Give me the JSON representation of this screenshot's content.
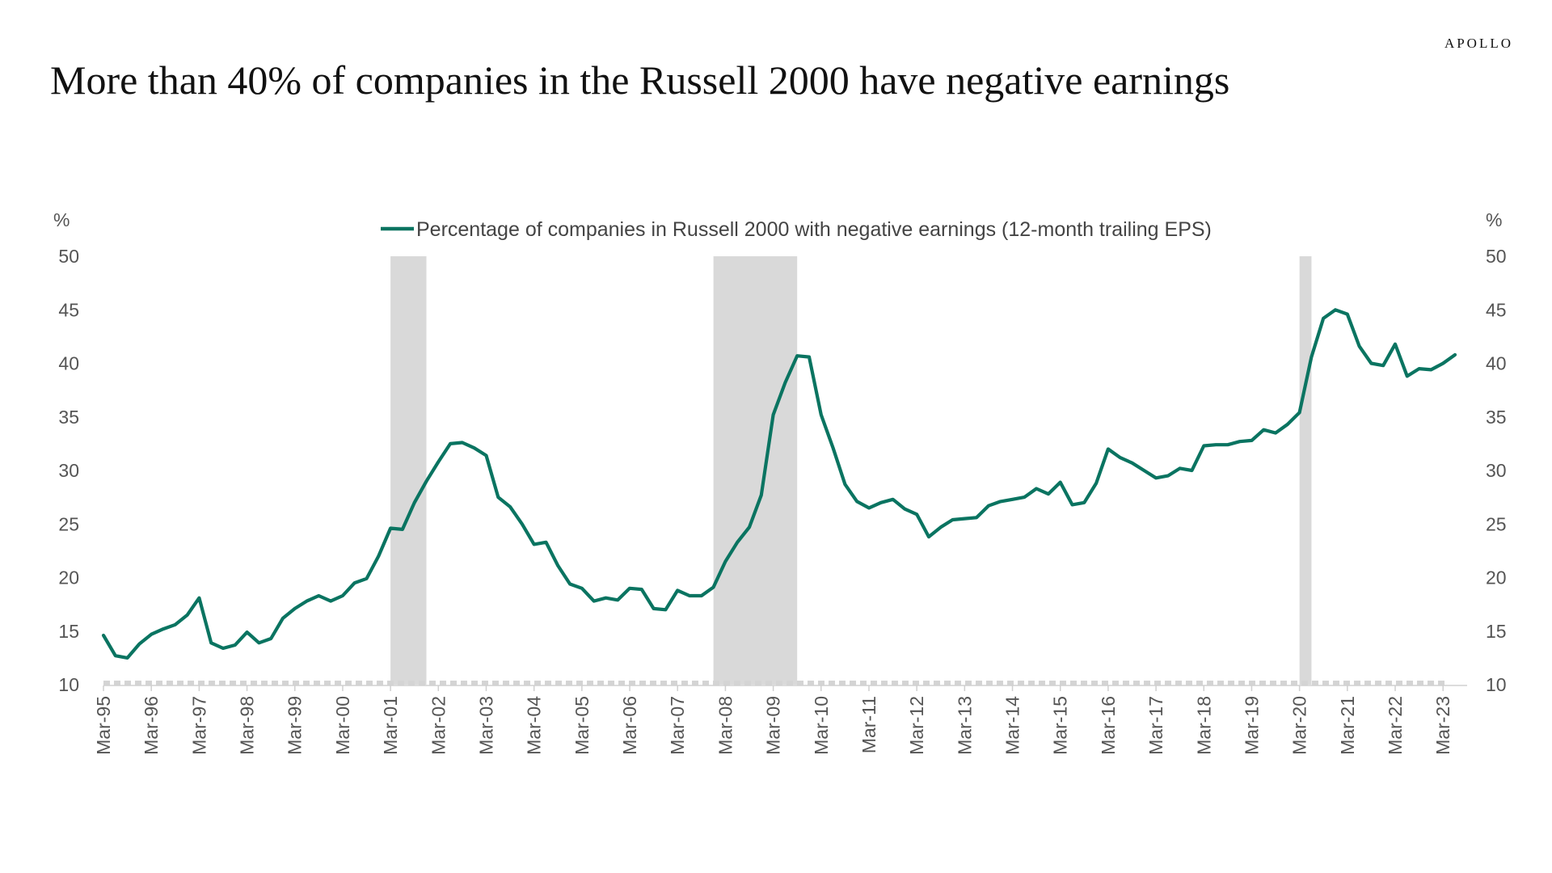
{
  "brand": "APOLLO",
  "title": "More than 40% of companies in the Russell 2000 have negative earnings",
  "chart_data": {
    "type": "line",
    "title": "More than 40% of companies in the Russell 2000 have negative earnings",
    "ylabel_left": "%",
    "ylabel_right": "%",
    "ylim": [
      10,
      50
    ],
    "yticks": [
      10,
      15,
      20,
      25,
      30,
      35,
      40,
      45,
      50
    ],
    "x_tick_labels": [
      "Mar-95",
      "Mar-96",
      "Mar-97",
      "Mar-98",
      "Mar-99",
      "Mar-00",
      "Mar-01",
      "Mar-02",
      "Mar-03",
      "Mar-04",
      "Mar-05",
      "Mar-06",
      "Mar-07",
      "Mar-08",
      "Mar-09",
      "Mar-10",
      "Mar-11",
      "Mar-12",
      "Mar-13",
      "Mar-14",
      "Mar-15",
      "Mar-16",
      "Mar-17",
      "Mar-18",
      "Mar-19",
      "Mar-20",
      "Mar-21",
      "Mar-22",
      "Mar-23"
    ],
    "legend_position": "top-center",
    "grid": false,
    "recession_shading": [
      {
        "start": 2001.0,
        "end": 2001.75
      },
      {
        "start": 2007.75,
        "end": 2009.5
      },
      {
        "start": 2020.0,
        "end": 2020.25
      }
    ],
    "colors": {
      "line": "#0a7461",
      "recession": "#d9d9d9",
      "zero_dash": "#d4d4d4"
    },
    "series": [
      {
        "name": "Percentage of companies in Russell 2000 with negative earnings (12-month trailing EPS)",
        "x": [
          1995.0,
          1995.25,
          1995.5,
          1995.75,
          1996.0,
          1996.25,
          1996.5,
          1996.75,
          1997.0,
          1997.25,
          1997.5,
          1997.75,
          1998.0,
          1998.25,
          1998.5,
          1998.75,
          1999.0,
          1999.25,
          1999.5,
          1999.75,
          2000.0,
          2000.25,
          2000.5,
          2000.75,
          2001.0,
          2001.25,
          2001.5,
          2001.75,
          2002.0,
          2002.25,
          2002.5,
          2002.75,
          2003.0,
          2003.25,
          2003.5,
          2003.75,
          2004.0,
          2004.25,
          2004.5,
          2004.75,
          2005.0,
          2005.25,
          2005.5,
          2005.75,
          2006.0,
          2006.25,
          2006.5,
          2006.75,
          2007.0,
          2007.25,
          2007.5,
          2007.75,
          2008.0,
          2008.25,
          2008.5,
          2008.75,
          2009.0,
          2009.25,
          2009.5,
          2009.75,
          2010.0,
          2010.25,
          2010.5,
          2010.75,
          2011.0,
          2011.25,
          2011.5,
          2011.75,
          2012.0,
          2012.25,
          2012.5,
          2012.75,
          2013.0,
          2013.25,
          2013.5,
          2013.75,
          2014.0,
          2014.25,
          2014.5,
          2014.75,
          2015.0,
          2015.25,
          2015.5,
          2015.75,
          2016.0,
          2016.25,
          2016.5,
          2016.75,
          2017.0,
          2017.25,
          2017.5,
          2017.75,
          2018.0,
          2018.25,
          2018.5,
          2018.75,
          2019.0,
          2019.25,
          2019.5,
          2019.75,
          2020.0,
          2020.25,
          2020.5,
          2020.75,
          2021.0,
          2021.25,
          2021.5,
          2021.75,
          2022.0,
          2022.25,
          2022.5,
          2022.75,
          2023.0,
          2023.25
        ],
        "values": [
          14.6,
          12.7,
          12.5,
          13.8,
          14.7,
          15.2,
          15.6,
          16.5,
          18.1,
          13.9,
          13.4,
          13.7,
          14.9,
          13.9,
          14.3,
          16.2,
          17.1,
          17.8,
          18.3,
          17.8,
          18.3,
          19.5,
          19.9,
          22.0,
          24.6,
          24.5,
          27.0,
          29.0,
          30.8,
          32.5,
          32.6,
          32.1,
          31.4,
          27.5,
          26.6,
          25.0,
          23.1,
          23.3,
          21.1,
          19.4,
          19.0,
          17.8,
          18.1,
          17.9,
          19.0,
          18.9,
          17.1,
          17.0,
          18.8,
          18.3,
          18.3,
          19.1,
          21.5,
          23.3,
          24.7,
          27.7,
          35.2,
          38.2,
          40.7,
          40.6,
          35.2,
          32.1,
          28.7,
          27.1,
          26.5,
          27.0,
          27.3,
          26.4,
          25.9,
          23.8,
          24.7,
          25.4,
          25.5,
          25.6,
          26.7,
          27.1,
          27.3,
          27.5,
          28.3,
          27.8,
          28.9,
          26.8,
          27.0,
          28.8,
          32.0,
          31.2,
          30.7,
          30.0,
          29.3,
          29.5,
          30.2,
          30.0,
          32.3,
          32.4,
          32.4,
          32.7,
          32.8,
          33.8,
          33.5,
          34.3,
          35.4,
          40.6,
          44.2,
          45.0,
          44.6,
          41.6,
          40.0,
          39.8,
          41.8,
          38.8,
          39.5,
          39.4,
          40.0,
          40.8
        ]
      }
    ]
  }
}
